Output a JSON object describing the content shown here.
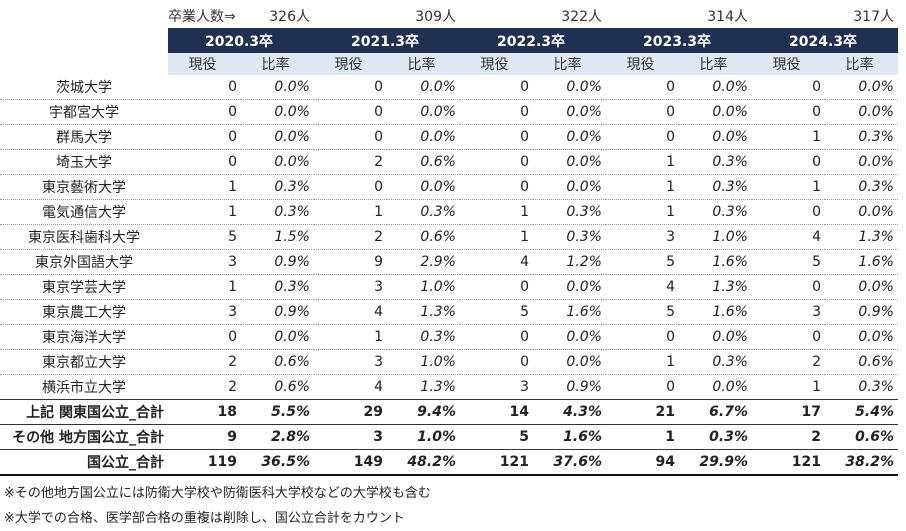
{
  "header": {
    "graduates_label": "卒業人数⇒",
    "graduates": [
      "326人",
      "309人",
      "322人",
      "314人",
      "317人"
    ],
    "years": [
      "2020.3卒",
      "2021.3卒",
      "2022.3卒",
      "2023.3卒",
      "2024.3卒"
    ],
    "sub_headers": [
      "現役",
      "比率"
    ]
  },
  "table": {
    "rows": [
      {
        "label": "茨城大学",
        "cells": [
          "0",
          "0.0%",
          "0",
          "0.0%",
          "0",
          "0.0%",
          "0",
          "0.0%",
          "0",
          "0.0%"
        ]
      },
      {
        "label": "宇都宮大学",
        "cells": [
          "0",
          "0.0%",
          "0",
          "0.0%",
          "0",
          "0.0%",
          "0",
          "0.0%",
          "0",
          "0.0%"
        ]
      },
      {
        "label": "群馬大学",
        "cells": [
          "0",
          "0.0%",
          "0",
          "0.0%",
          "0",
          "0.0%",
          "0",
          "0.0%",
          "1",
          "0.3%"
        ]
      },
      {
        "label": "埼玉大学",
        "cells": [
          "0",
          "0.0%",
          "2",
          "0.6%",
          "0",
          "0.0%",
          "1",
          "0.3%",
          "0",
          "0.0%"
        ]
      },
      {
        "label": "東京藝術大学",
        "cells": [
          "1",
          "0.3%",
          "0",
          "0.0%",
          "0",
          "0.0%",
          "1",
          "0.3%",
          "1",
          "0.3%"
        ]
      },
      {
        "label": "電気通信大学",
        "cells": [
          "1",
          "0.3%",
          "1",
          "0.3%",
          "1",
          "0.3%",
          "1",
          "0.3%",
          "0",
          "0.0%"
        ]
      },
      {
        "label": "東京医科歯科大学",
        "cells": [
          "5",
          "1.5%",
          "2",
          "0.6%",
          "1",
          "0.3%",
          "3",
          "1.0%",
          "4",
          "1.3%"
        ]
      },
      {
        "label": "東京外国語大学",
        "cells": [
          "3",
          "0.9%",
          "9",
          "2.9%",
          "4",
          "1.2%",
          "5",
          "1.6%",
          "5",
          "1.6%"
        ]
      },
      {
        "label": "東京学芸大学",
        "cells": [
          "1",
          "0.3%",
          "3",
          "1.0%",
          "0",
          "0.0%",
          "4",
          "1.3%",
          "0",
          "0.0%"
        ]
      },
      {
        "label": "東京農工大学",
        "cells": [
          "3",
          "0.9%",
          "4",
          "1.3%",
          "5",
          "1.6%",
          "5",
          "1.6%",
          "3",
          "0.9%"
        ]
      },
      {
        "label": "東京海洋大学",
        "cells": [
          "0",
          "0.0%",
          "1",
          "0.3%",
          "0",
          "0.0%",
          "0",
          "0.0%",
          "0",
          "0.0%"
        ]
      },
      {
        "label": "東京都立大学",
        "cells": [
          "2",
          "0.6%",
          "3",
          "1.0%",
          "0",
          "0.0%",
          "1",
          "0.3%",
          "2",
          "0.6%"
        ]
      },
      {
        "label": "横浜市立大学",
        "cells": [
          "2",
          "0.6%",
          "4",
          "1.3%",
          "3",
          "0.9%",
          "0",
          "0.0%",
          "1",
          "0.3%"
        ]
      }
    ],
    "totals": [
      {
        "label": "上記 関東国公立_合計",
        "cells": [
          "18",
          "5.5%",
          "29",
          "9.4%",
          "14",
          "4.3%",
          "21",
          "6.7%",
          "17",
          "5.4%"
        ]
      },
      {
        "label": "その他 地方国公立_合計",
        "cells": [
          "9",
          "2.8%",
          "3",
          "1.0%",
          "5",
          "1.6%",
          "1",
          "0.3%",
          "2",
          "0.6%"
        ]
      },
      {
        "label": "国公立_合計",
        "cells": [
          "119",
          "36.5%",
          "149",
          "48.2%",
          "121",
          "37.6%",
          "94",
          "29.9%",
          "121",
          "38.2%"
        ]
      }
    ]
  },
  "notes": [
    "※その他地方国公立には防衛大学校や防衛医科大学校などの大学校も含む",
    "※大学での合格、医学部合格の重複は削除し、国公立合計をカウント"
  ]
}
